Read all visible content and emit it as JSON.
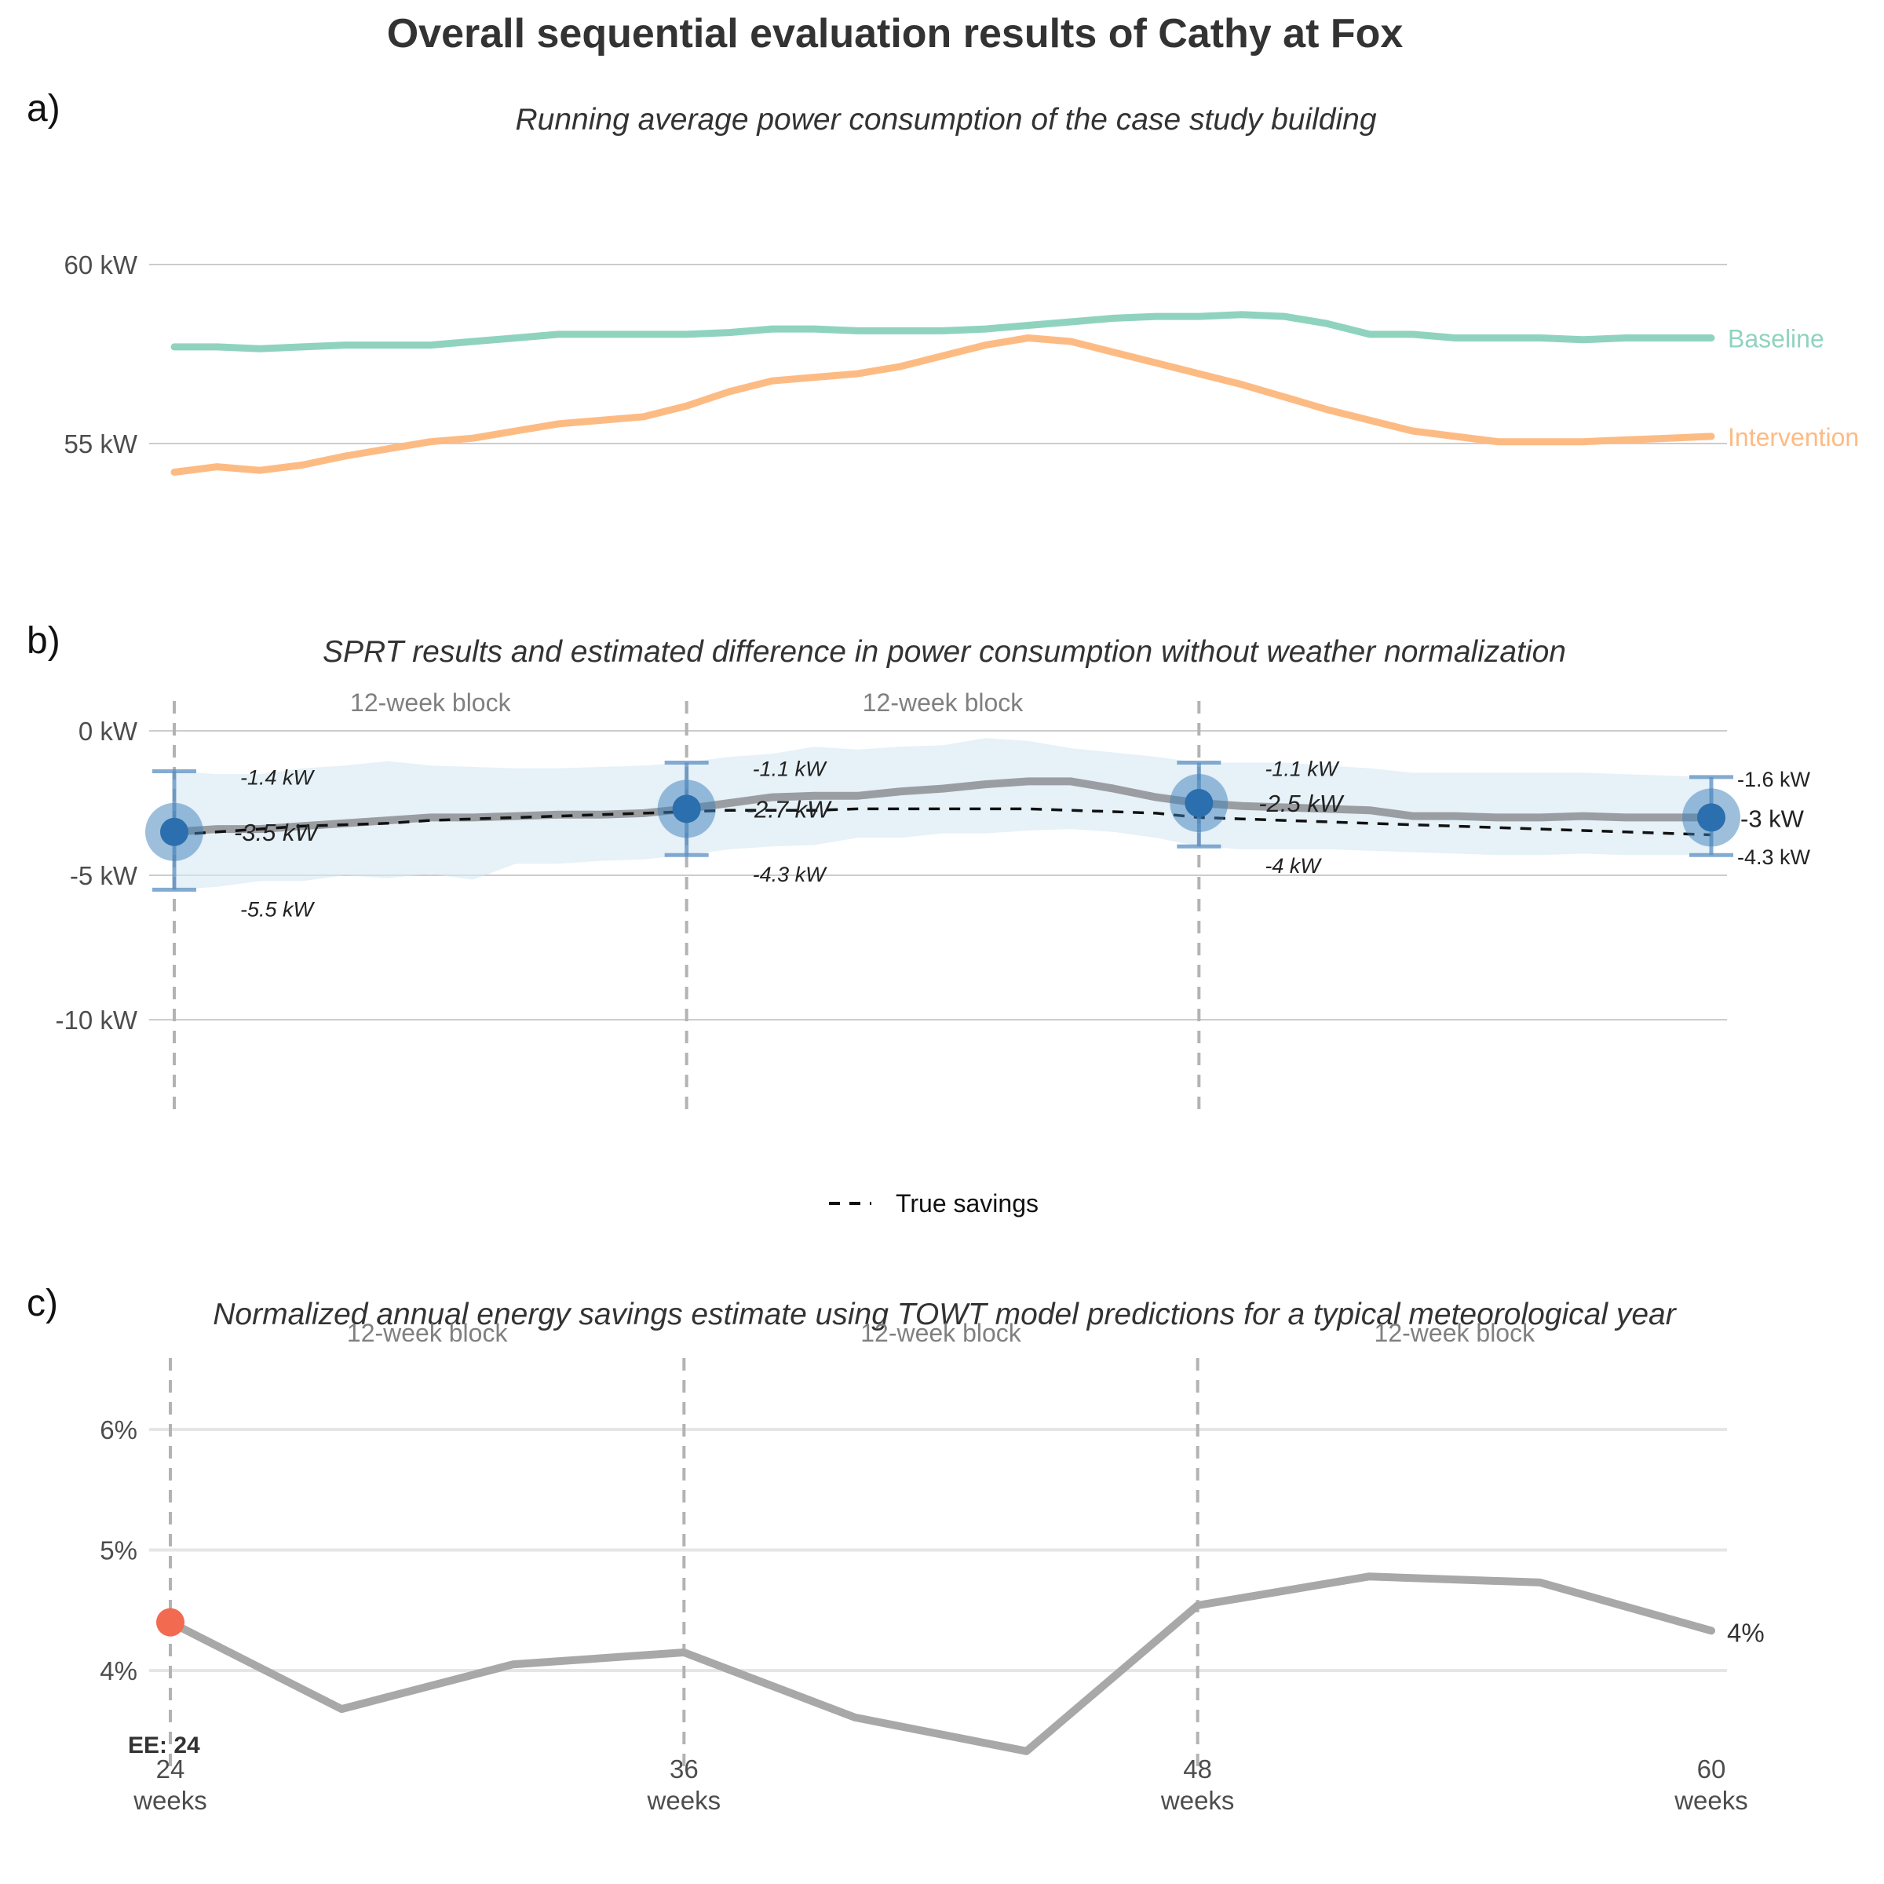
{
  "title": "Overall sequential evaluation results of Cathy at Fox",
  "x_ticks": [
    {
      "value": 24,
      "label": "24",
      "unit": "weeks"
    },
    {
      "value": 36,
      "label": "36",
      "unit": "weeks"
    },
    {
      "value": 48,
      "label": "48",
      "unit": "weeks"
    },
    {
      "value": 60,
      "label": "60",
      "unit": "weeks"
    }
  ],
  "block_label": "12-week block",
  "chart_data": [
    {
      "panel": "a)",
      "type": "line",
      "title": "Running average power consumption of the case study building",
      "xlabel": "",
      "ylabel": "",
      "xlim": [
        24,
        60
      ],
      "ylim": [
        52,
        62
      ],
      "y_ticks": [
        {
          "value": 55,
          "label": "55 kW"
        },
        {
          "value": 60,
          "label": "60 kW"
        }
      ],
      "grid": true,
      "x": [
        24,
        25,
        26,
        27,
        28,
        29,
        30,
        31,
        32,
        33,
        34,
        35,
        36,
        37,
        38,
        39,
        40,
        41,
        42,
        43,
        44,
        45,
        46,
        47,
        48,
        49,
        50,
        51,
        52,
        53,
        54,
        55,
        56,
        57,
        58,
        59,
        60
      ],
      "series": [
        {
          "name": "Baseline",
          "color": "#8fd3be",
          "values": [
            57.7,
            57.7,
            57.65,
            57.7,
            57.75,
            57.75,
            57.75,
            57.85,
            57.95,
            58.05,
            58.05,
            58.05,
            58.05,
            58.1,
            58.2,
            58.2,
            58.15,
            58.15,
            58.15,
            58.2,
            58.3,
            58.4,
            58.5,
            58.55,
            58.55,
            58.6,
            58.55,
            58.35,
            58.05,
            58.05,
            57.95,
            57.95,
            57.95,
            57.9,
            57.95,
            57.95,
            57.95
          ]
        },
        {
          "name": "Intervention",
          "color": "#fdbb84",
          "values": [
            54.2,
            54.35,
            54.25,
            54.4,
            54.65,
            54.85,
            55.05,
            55.15,
            55.35,
            55.55,
            55.65,
            55.75,
            56.05,
            56.45,
            56.75,
            56.85,
            56.95,
            57.15,
            57.45,
            57.75,
            57.95,
            57.85,
            57.55,
            57.25,
            56.95,
            56.65,
            56.3,
            55.95,
            55.65,
            55.35,
            55.2,
            55.05,
            55.05,
            55.05,
            55.1,
            55.15,
            55.2
          ]
        }
      ]
    },
    {
      "panel": "b)",
      "type": "line",
      "title": "SPRT results and estimated difference in power consumption without weather normalization",
      "xlabel": "",
      "ylabel": "",
      "xlim": [
        24,
        60
      ],
      "ylim": [
        -13,
        1
      ],
      "y_ticks": [
        {
          "value": 0,
          "label": "0 kW"
        },
        {
          "value": -5,
          "label": "-5 kW"
        },
        {
          "value": -10,
          "label": "-10 kW"
        }
      ],
      "grid": true,
      "legend": {
        "entries": [
          "True savings"
        ],
        "placement": "bottom"
      },
      "x": [
        24,
        25,
        26,
        27,
        28,
        29,
        30,
        31,
        32,
        33,
        34,
        35,
        36,
        37,
        38,
        39,
        40,
        41,
        42,
        43,
        44,
        45,
        46,
        47,
        48,
        49,
        50,
        51,
        52,
        53,
        54,
        55,
        56,
        57,
        58,
        59,
        60
      ],
      "estimate": {
        "values": [
          -3.5,
          -3.4,
          -3.4,
          -3.3,
          -3.2,
          -3.1,
          -3.0,
          -3.0,
          -2.95,
          -2.9,
          -2.9,
          -2.85,
          -2.7,
          -2.5,
          -2.3,
          -2.25,
          -2.25,
          -2.1,
          -2.0,
          -1.85,
          -1.75,
          -1.75,
          -2.0,
          -2.3,
          -2.5,
          -2.6,
          -2.65,
          -2.7,
          -2.75,
          -2.95,
          -2.95,
          -3.0,
          -3.0,
          -2.95,
          -3.0,
          -3.0,
          -3.0
        ],
        "band_upper": [
          -1.4,
          -1.5,
          -1.5,
          -1.3,
          -1.2,
          -1.05,
          -1.2,
          -1.25,
          -1.3,
          -1.3,
          -1.25,
          -1.2,
          -1.1,
          -0.9,
          -0.8,
          -0.55,
          -0.65,
          -0.55,
          -0.5,
          -0.25,
          -0.35,
          -0.6,
          -0.75,
          -0.9,
          -1.1,
          -1.1,
          -1.1,
          -1.2,
          -1.3,
          -1.45,
          -1.45,
          -1.45,
          -1.45,
          -1.45,
          -1.5,
          -1.55,
          -1.6
        ],
        "band_lower": [
          -5.5,
          -5.4,
          -5.2,
          -5.2,
          -5.0,
          -5.1,
          -4.95,
          -5.15,
          -4.6,
          -4.6,
          -4.5,
          -4.45,
          -4.3,
          -4.1,
          -4.0,
          -3.95,
          -3.7,
          -3.7,
          -3.55,
          -3.55,
          -3.45,
          -3.4,
          -3.5,
          -3.7,
          -4.0,
          -4.1,
          -4.1,
          -4.1,
          -4.15,
          -4.2,
          -4.25,
          -4.3,
          -4.3,
          -4.25,
          -4.3,
          -4.3,
          -4.3
        ]
      },
      "true_savings": {
        "name": "True savings",
        "values": [
          -3.6,
          -3.5,
          -3.4,
          -3.3,
          -3.25,
          -3.2,
          -3.1,
          -3.05,
          -3.0,
          -2.95,
          -2.9,
          -2.85,
          -2.8,
          -2.75,
          -2.75,
          -2.75,
          -2.7,
          -2.7,
          -2.7,
          -2.7,
          -2.7,
          -2.75,
          -2.8,
          -2.85,
          -3.0,
          -3.05,
          -3.1,
          -3.15,
          -3.2,
          -3.25,
          -3.3,
          -3.35,
          -3.4,
          -3.45,
          -3.5,
          -3.55,
          -3.6
        ]
      },
      "checkpoints": [
        {
          "x": 24,
          "estimate": -3.5,
          "upper": -1.4,
          "lower": -5.5,
          "estimate_label": "-3.5 kW",
          "upper_label": "-1.4 kW",
          "lower_label": "-5.5 kW"
        },
        {
          "x": 36,
          "estimate": -2.7,
          "upper": -1.1,
          "lower": -4.3,
          "estimate_label": "-2.7 kW",
          "upper_label": "-1.1 kW",
          "lower_label": "-4.3 kW"
        },
        {
          "x": 48,
          "estimate": -2.5,
          "upper": -1.1,
          "lower": -4.0,
          "estimate_label": "-2.5 kW",
          "upper_label": "-1.1 kW",
          "lower_label": "-4 kW"
        },
        {
          "x": 60,
          "estimate": -3.0,
          "upper": -1.6,
          "lower": -4.3,
          "estimate_label": "-3 kW",
          "upper_label": "-1.6 kW",
          "lower_label": "-4.3 kW"
        }
      ],
      "block_labels": [
        "12-week block",
        "12-week block"
      ]
    },
    {
      "panel": "c)",
      "type": "line",
      "title": "Normalized annual energy savings estimate using TOWT model predictions for a typical meteorological year",
      "xlabel": "",
      "ylabel": "",
      "xlim": [
        24,
        60
      ],
      "ylim": [
        3.3,
        6.7
      ],
      "y_ticks": [
        {
          "value": 4,
          "label": "4%"
        },
        {
          "value": 5,
          "label": "5%"
        },
        {
          "value": 6,
          "label": "6%"
        }
      ],
      "grid": true,
      "x": [
        24,
        28,
        32,
        36,
        40,
        44,
        48,
        52,
        56,
        60
      ],
      "values": [
        4.4,
        3.68,
        4.05,
        4.15,
        3.61,
        3.33,
        4.54,
        4.78,
        4.73,
        4.33
      ],
      "end_label": "4%",
      "marker": {
        "x": 24,
        "value": 4.4,
        "color": "#f26a4f"
      },
      "annotation": "EE: 24",
      "block_labels": [
        "12-week block",
        "12-week block",
        "12-week block"
      ]
    }
  ]
}
